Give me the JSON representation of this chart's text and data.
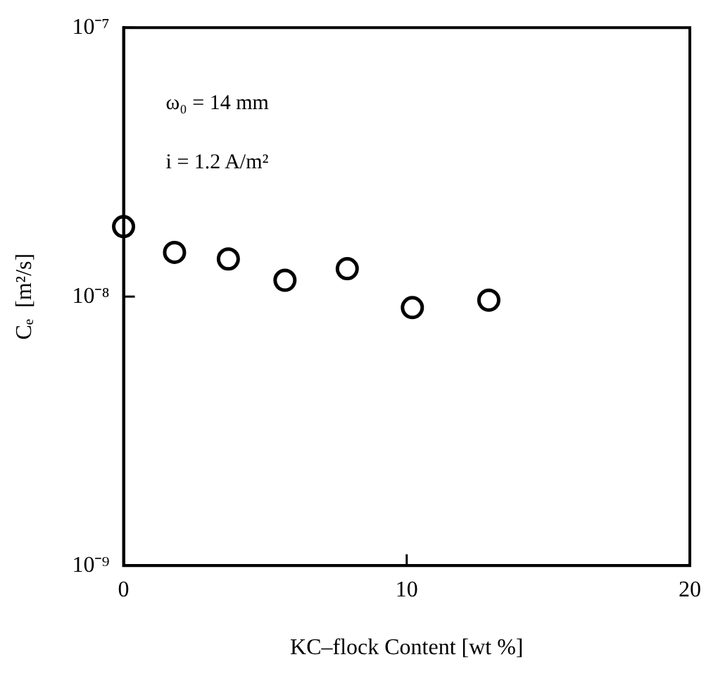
{
  "chart_data": {
    "type": "scatter",
    "xlabel": "KC–flock Content [wt %]",
    "ylabel": "Cₑ  [m²/s]",
    "x": [
      0,
      1.8,
      3.7,
      5.7,
      7.9,
      10.2,
      12.9
    ],
    "series": [
      {
        "color": "#000000",
        "values": [
          1.82e-08,
          1.46e-08,
          1.38e-08,
          1.15e-08,
          1.27e-08,
          9.1e-09,
          9.7e-09
        ]
      }
    ],
    "xlim": [
      0,
      20
    ],
    "xticks": [
      0,
      10,
      20
    ],
    "ylim": [
      1e-09,
      1e-07
    ],
    "yticks": [
      {
        "value": 1e-09,
        "label": "10⁻⁹"
      },
      {
        "value": 1e-08,
        "label": "10⁻⁸"
      },
      {
        "value": 1e-07,
        "label": "10⁻⁷"
      }
    ],
    "log": "y",
    "grid": false,
    "legend": false,
    "marker": "circle",
    "annotations": [
      "ω₀ = 14 mm",
      "i = 1.2 A/m²"
    ]
  }
}
